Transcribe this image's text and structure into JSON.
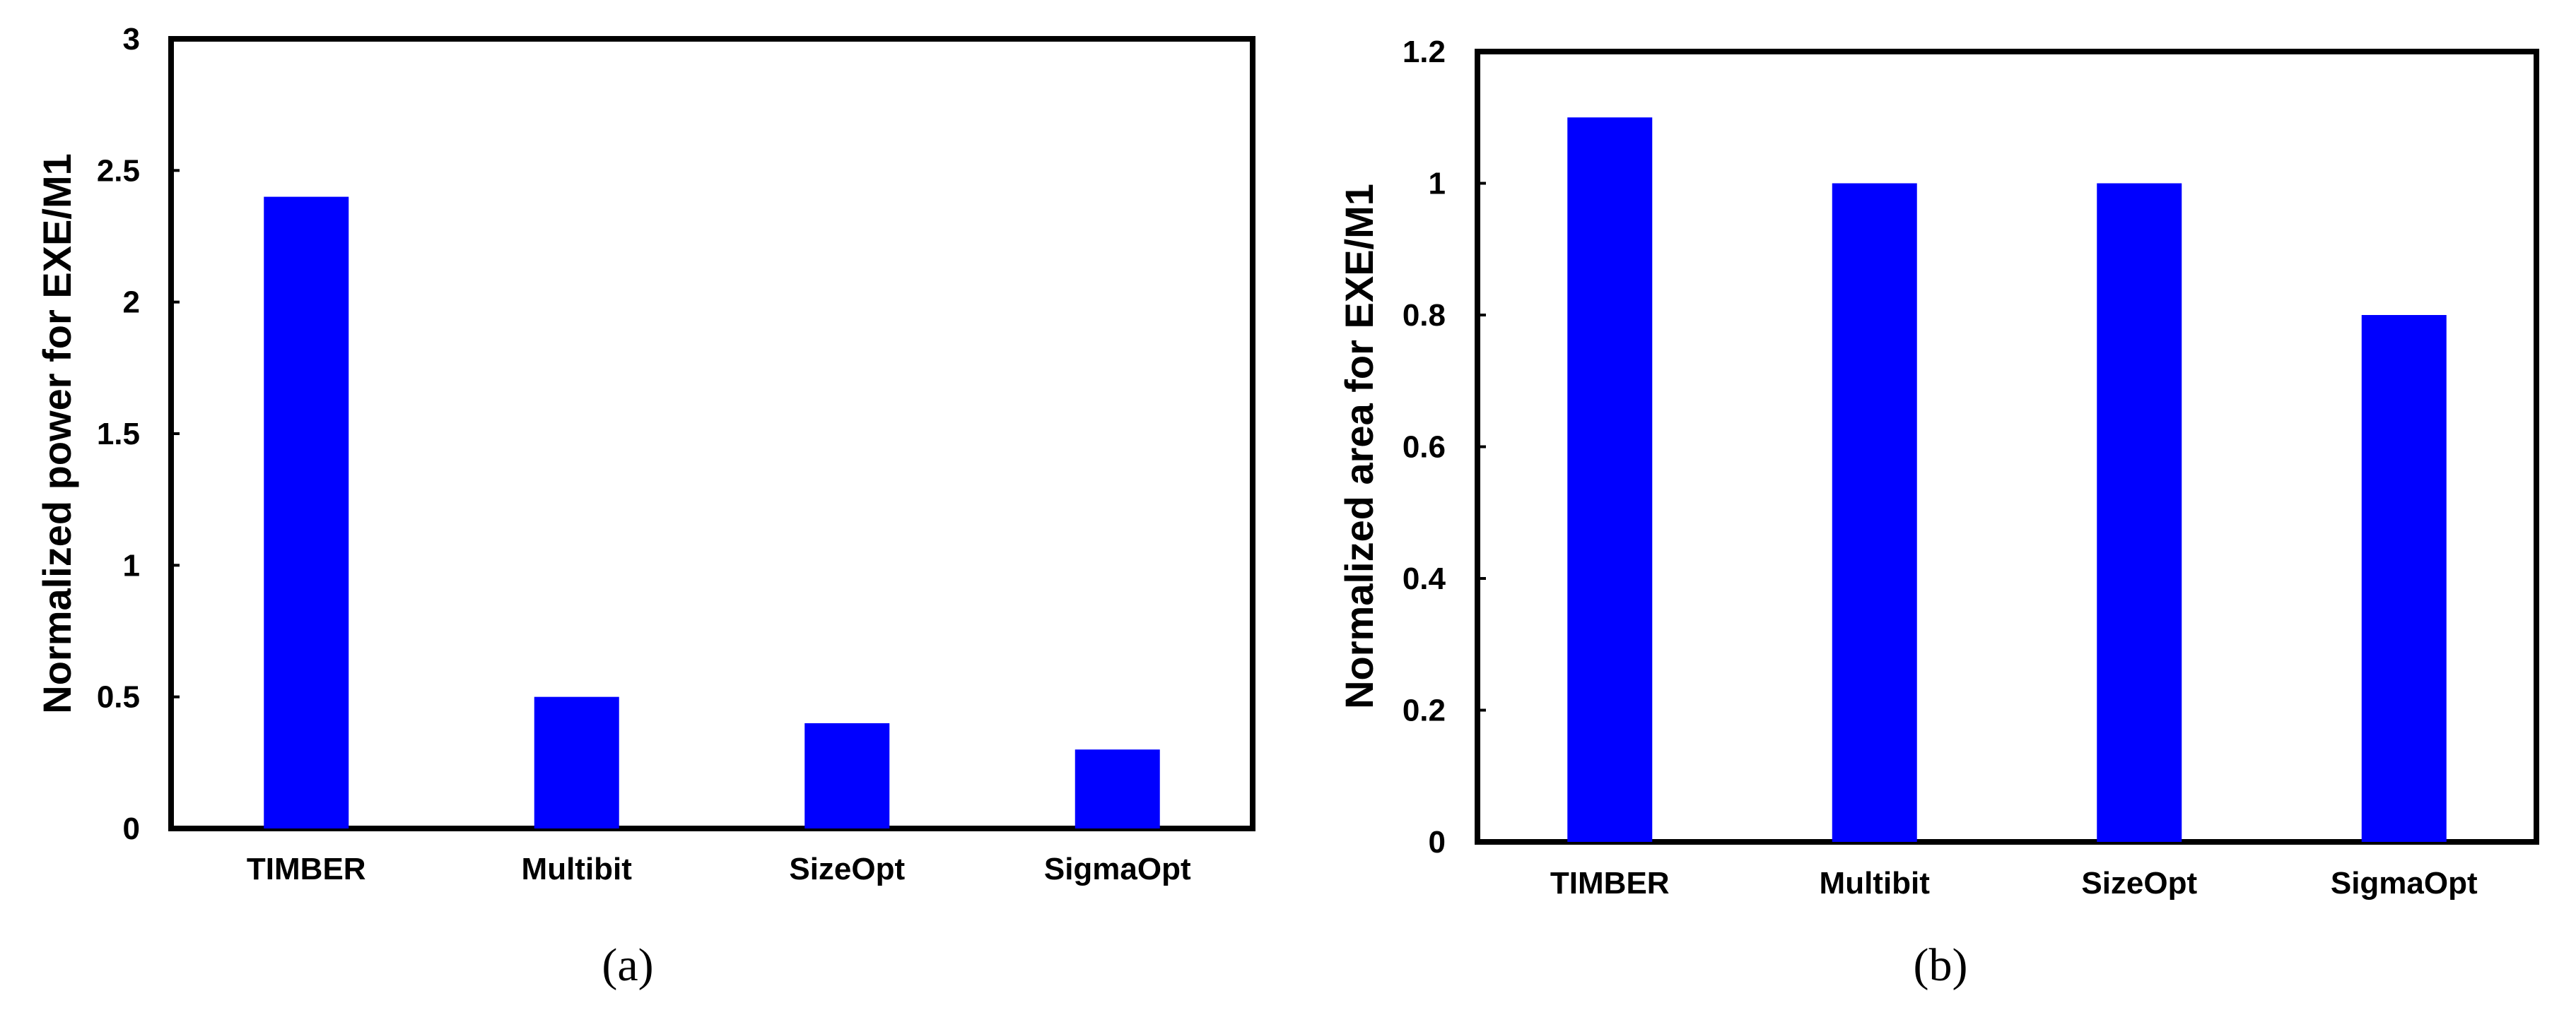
{
  "chart_data": [
    {
      "type": "bar",
      "categories": [
        "TIMBER",
        "Multibit",
        "SizeOpt",
        "SigmaOpt"
      ],
      "values": [
        2.4,
        0.5,
        0.4,
        0.3
      ],
      "ylabel": "Normalized power for EXE/M1",
      "xlabel": "",
      "ylim": [
        0,
        3
      ],
      "yticks": [
        0,
        0.5,
        1,
        1.5,
        2,
        2.5,
        3
      ],
      "ytick_labels": [
        "0",
        "0.5",
        "1",
        "1.5",
        "2",
        "2.5",
        "3"
      ],
      "bar_color": "#0000ff",
      "grid": false,
      "caption": "(a)"
    },
    {
      "type": "bar",
      "categories": [
        "TIMBER",
        "Multibit",
        "SizeOpt",
        "SigmaOpt"
      ],
      "values": [
        1.1,
        1.0,
        1.0,
        0.8
      ],
      "ylabel": "Normalized area for EXE/M1",
      "xlabel": "",
      "ylim": [
        0,
        1.2
      ],
      "yticks": [
        0,
        0.2,
        0.4,
        0.6,
        0.8,
        1,
        1.2
      ],
      "ytick_labels": [
        "0",
        "0.2",
        "0.4",
        "0.6",
        "0.8",
        "1",
        "1.2"
      ],
      "bar_color": "#0000ff",
      "grid": false,
      "caption": "(b)"
    }
  ]
}
